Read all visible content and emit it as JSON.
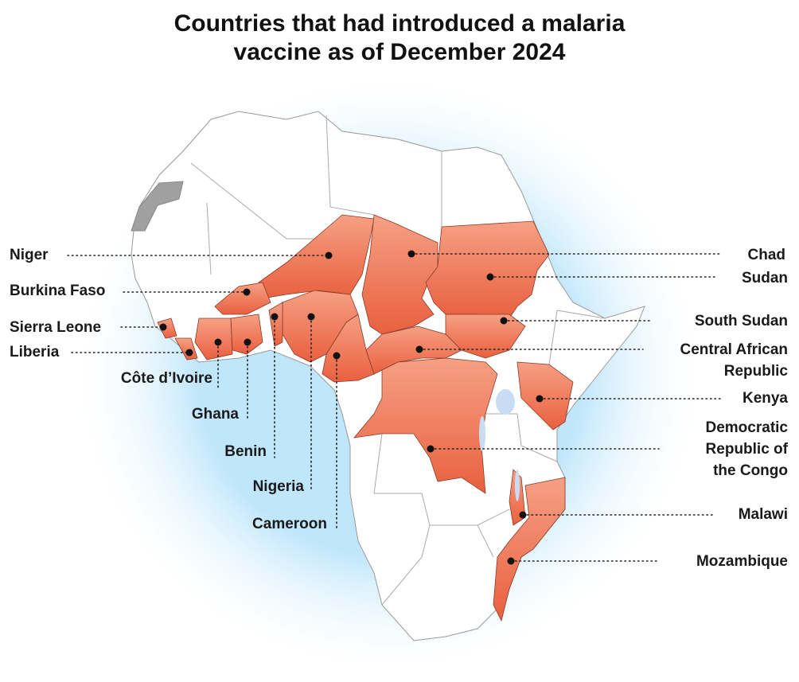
{
  "title_lines": [
    "Countries that had introduced a malaria",
    "vaccine as of December 2024"
  ],
  "countries": [
    {
      "label": "Niger"
    },
    {
      "label": "Burkina Faso"
    },
    {
      "label": "Sierra Leone"
    },
    {
      "label": "Liberia"
    },
    {
      "label": "Côte d’Ivoire"
    },
    {
      "label": "Ghana"
    },
    {
      "label": "Benin"
    },
    {
      "label": "Nigeria"
    },
    {
      "label": "Cameroon"
    },
    {
      "label": "Chad"
    },
    {
      "label": "Sudan"
    },
    {
      "label": "South Sudan"
    },
    {
      "label": "Central African Republic"
    },
    {
      "label": "Kenya"
    },
    {
      "label": "Democratic Republic of the Congo"
    },
    {
      "label": "Malawi"
    },
    {
      "label": "Mozambique"
    }
  ]
}
